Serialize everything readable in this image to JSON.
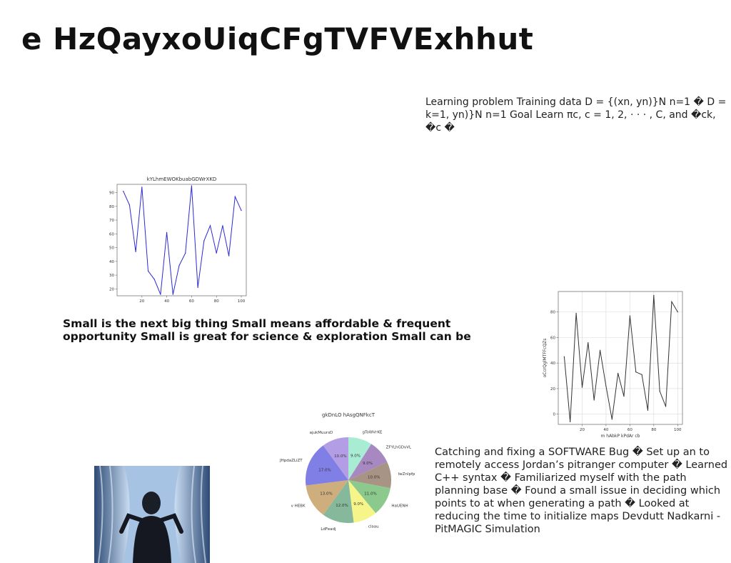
{
  "slide": {
    "title": "e HzQayxoUiqCFgTVFVExhhut",
    "learning_text": "Learning problem Training data D = {(xn, yn)}N n=1 � D = k=1, yn)}N n=1 Goal Learn πc, c = 1, 2, · · · , C, and �ck, �c �",
    "small_text": "Small is the next big thing Small means affordable & frequent opportunity Small is great for science & exploration Small can be",
    "bug_text": "Catching and fixing a SOFTWARE Bug � Set up an to remotely access Jordan’s pitranger computer � Learned C++ syntax � Familiarized myself with the path planning base � Found a small issue in deciding which points to at when generating a path � Looked at reducing the time to initialize maps Devdutt Nadkarni - PitMAGIC Simulation"
  },
  "chart_data": [
    {
      "type": "line",
      "title": "kYLhmEWOKbuabGDWrXKD",
      "xlabel": "",
      "ylabel": "",
      "xlim": [
        0,
        104
      ],
      "ylim": [
        15,
        96
      ],
      "xticks": [
        20,
        40,
        60,
        80,
        100
      ],
      "yticks": [
        20,
        30,
        40,
        50,
        60,
        70,
        80,
        90
      ],
      "grid": false,
      "color": "#2b2bd8",
      "x": [
        5,
        10,
        15,
        20,
        25,
        30,
        35,
        40,
        45,
        50,
        55,
        60,
        65,
        70,
        75,
        80,
        85,
        90,
        95,
        100
      ],
      "y": [
        91,
        81,
        47,
        94,
        33,
        27,
        16,
        61,
        16,
        37,
        46,
        95,
        21,
        55,
        66,
        46,
        66,
        44,
        87,
        77
      ]
    },
    {
      "type": "line",
      "title": "",
      "xlabel": "m hAbkP kPdAr cb",
      "ylabel": "oCcrQglMTFFcQZs",
      "xlim": [
        0,
        104
      ],
      "ylim": [
        -8,
        96
      ],
      "xticks": [
        20,
        40,
        60,
        80,
        100
      ],
      "yticks": [
        0,
        20,
        40,
        60,
        80
      ],
      "grid": true,
      "color": "#333333",
      "x": [
        5,
        10,
        15,
        20,
        25,
        30,
        35,
        40,
        45,
        50,
        55,
        60,
        65,
        70,
        75,
        80,
        85,
        90,
        95,
        100
      ],
      "y": [
        45,
        -6,
        79,
        21,
        56,
        11,
        50,
        22,
        -4,
        32,
        14,
        77,
        33,
        31,
        3,
        93,
        18,
        6,
        88,
        80
      ]
    },
    {
      "type": "pie",
      "title": "gkDnLO hAsgQNFkcT",
      "categories": [
        "gToWVrKE",
        "ZFYLhGDvVL",
        "lwZnlpfp",
        "HaUENH",
        "claau",
        "LdFeadj",
        "v HEBK",
        "JHpdaZLiZT",
        "ajukMuursD"
      ],
      "values": [
        9.0,
        9.0,
        10.0,
        11.0,
        9.0,
        12.0,
        13.0,
        17.0,
        10.0
      ],
      "labels": [
        "9.0%",
        "9.0%",
        "10.0%",
        "11.0%",
        "9.0%",
        "12.0%",
        "13.0%",
        "17.0%",
        "10.0%"
      ],
      "colors": [
        "#a8ecd4",
        "#a788c0",
        "#a89484",
        "#8cc98c",
        "#f6f58a",
        "#86b89c",
        "#cfae7e",
        "#7f7fe6",
        "#b39ee6"
      ]
    }
  ]
}
